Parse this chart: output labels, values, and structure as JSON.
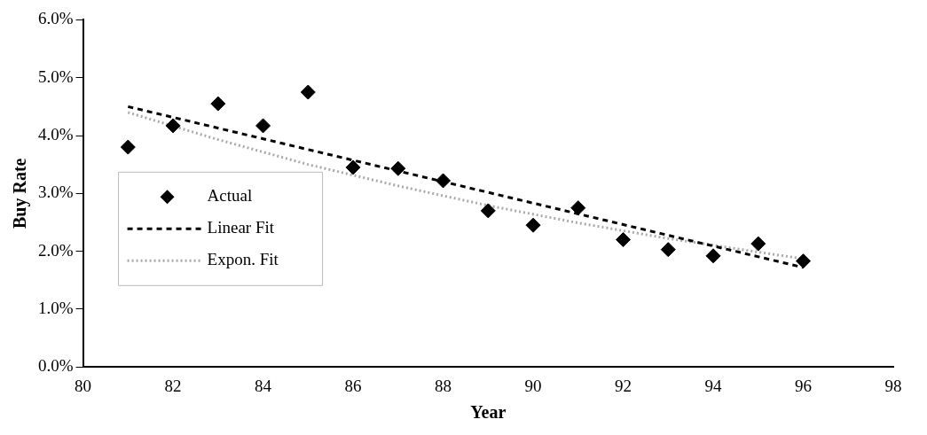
{
  "chart_data": {
    "type": "scatter",
    "xlabel": "Year",
    "ylabel": "Buy Rate",
    "xlim": [
      80,
      98
    ],
    "xticks": [
      80,
      82,
      84,
      86,
      88,
      90,
      92,
      94,
      96,
      98
    ],
    "ylim": [
      0,
      6
    ],
    "yticks": [
      {
        "value": 0,
        "label": "0.0%"
      },
      {
        "value": 1,
        "label": "1.0%"
      },
      {
        "value": 2,
        "label": "2.0%"
      },
      {
        "value": 3,
        "label": "3.0%"
      },
      {
        "value": 4,
        "label": "4.0%"
      },
      {
        "value": 5,
        "label": "5.0%"
      },
      {
        "value": 6,
        "label": "6.0%"
      }
    ],
    "grid": false,
    "legend": "left",
    "series": [
      {
        "name": "Actual",
        "type": "scatter",
        "marker": "diamond",
        "color": "#000000",
        "x": [
          81,
          82,
          83,
          84,
          85,
          86,
          87,
          88,
          89,
          90,
          91,
          92,
          93,
          94,
          95,
          96
        ],
        "values": [
          3.8,
          4.17,
          4.55,
          4.17,
          4.75,
          3.45,
          3.43,
          3.22,
          2.7,
          2.45,
          2.75,
          2.2,
          2.03,
          1.92,
          2.13,
          1.83
        ]
      },
      {
        "name": "Linear Fit",
        "type": "line",
        "line_style": "dashed",
        "marker": "none",
        "color": "#000000",
        "x": [
          81,
          96
        ],
        "values": [
          4.5,
          1.72
        ]
      },
      {
        "name": "Expon. Fit",
        "type": "line",
        "line_style": "dotted",
        "marker": "none",
        "color": "#aaaaaa",
        "x": [
          81,
          83,
          85,
          87,
          89,
          91,
          93,
          96
        ],
        "values": [
          4.4,
          3.93,
          3.5,
          3.13,
          2.79,
          2.49,
          2.22,
          1.87
        ]
      }
    ]
  }
}
